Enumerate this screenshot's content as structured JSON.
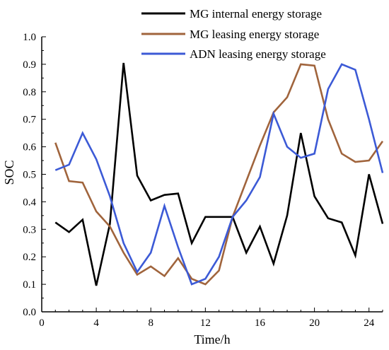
{
  "chart_data": {
    "type": "line",
    "title": "",
    "xlabel": "Time/h",
    "ylabel": "SOC",
    "xlim": [
      0,
      25
    ],
    "ylim": [
      0,
      1.0
    ],
    "xticks": [
      0,
      4,
      8,
      12,
      16,
      20,
      24
    ],
    "xtick_labels": [
      "0",
      "4",
      "8",
      "12",
      "16",
      "20",
      "24"
    ],
    "yticks": [
      0,
      0.1,
      0.2,
      0.3,
      0.4,
      0.5,
      0.6,
      0.7,
      0.8,
      0.9,
      1.0
    ],
    "ytick_labels": [
      "0.0",
      "0.1",
      "0.2",
      "0.3",
      "0.4",
      "0.5",
      "0.6",
      "0.7",
      "0.8",
      "0.9",
      "1.0"
    ],
    "grid": false,
    "legend_position": "top-right",
    "x": [
      1,
      2,
      3,
      4,
      5,
      6,
      7,
      8,
      9,
      10,
      11,
      12,
      13,
      14,
      15,
      16,
      17,
      18,
      19,
      20,
      21,
      22,
      23,
      24,
      25
    ],
    "series": [
      {
        "name": "MG internal energy storage",
        "color": "#000000",
        "values": [
          0.325,
          0.29,
          0.335,
          0.095,
          0.32,
          0.905,
          0.495,
          0.405,
          0.425,
          0.43,
          0.25,
          0.345,
          0.345,
          0.345,
          0.215,
          0.31,
          0.175,
          0.35,
          0.65,
          0.42,
          0.34,
          0.325,
          0.205,
          0.5,
          0.32
        ]
      },
      {
        "name": "MG leasing energy storage",
        "color": "#a0643c",
        "values": [
          0.615,
          0.475,
          0.47,
          0.365,
          0.31,
          0.215,
          0.135,
          0.165,
          0.13,
          0.195,
          0.12,
          0.1,
          0.15,
          0.345,
          0.475,
          0.605,
          0.725,
          0.78,
          0.9,
          0.895,
          0.7,
          0.575,
          0.545,
          0.55,
          0.62
        ]
      },
      {
        "name": "ADN leasing energy storage",
        "color": "#3c5ad6",
        "values": [
          0.515,
          0.535,
          0.65,
          0.555,
          0.42,
          0.25,
          0.145,
          0.215,
          0.385,
          0.235,
          0.1,
          0.12,
          0.2,
          0.345,
          0.405,
          0.49,
          0.72,
          0.6,
          0.56,
          0.575,
          0.81,
          0.9,
          0.88,
          0.7,
          0.505
        ]
      }
    ]
  }
}
